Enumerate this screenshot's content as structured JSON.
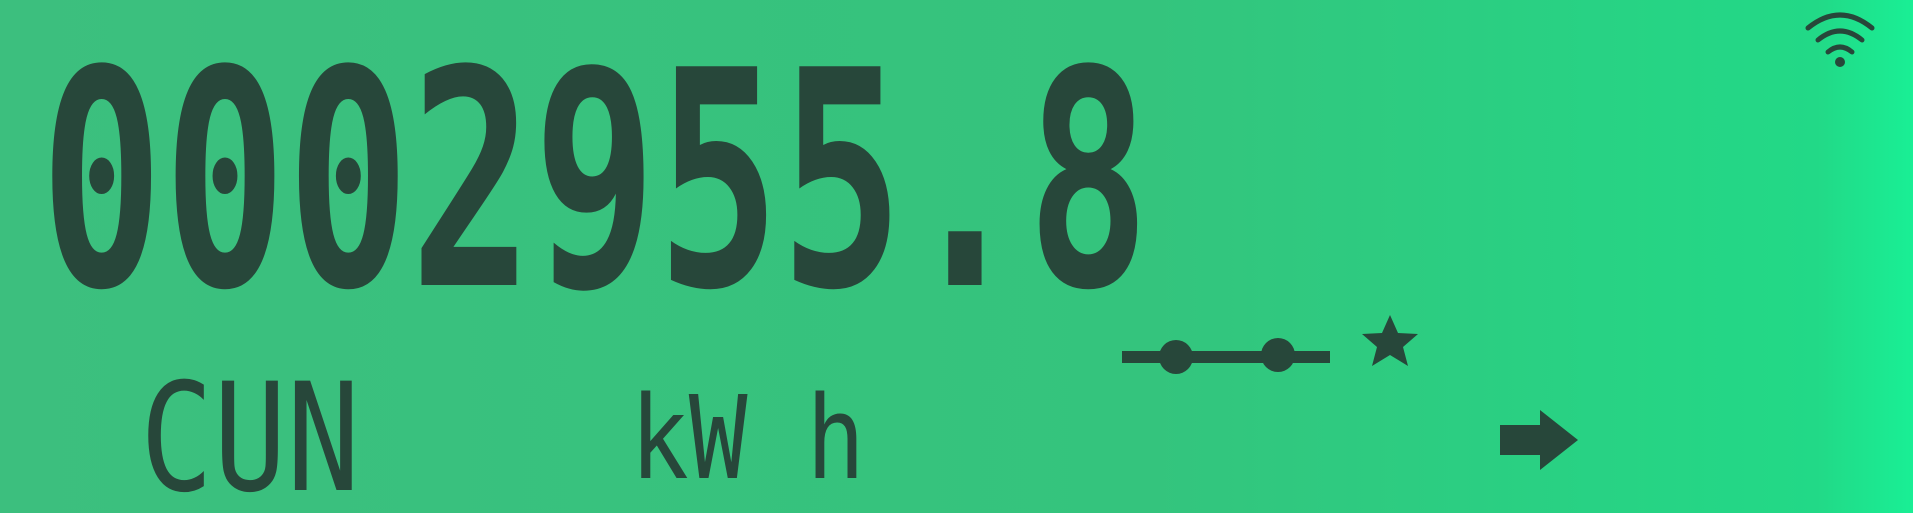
{
  "display": {
    "reading": "0002955.8",
    "mode": "CUN",
    "unit": "kW h"
  }
}
